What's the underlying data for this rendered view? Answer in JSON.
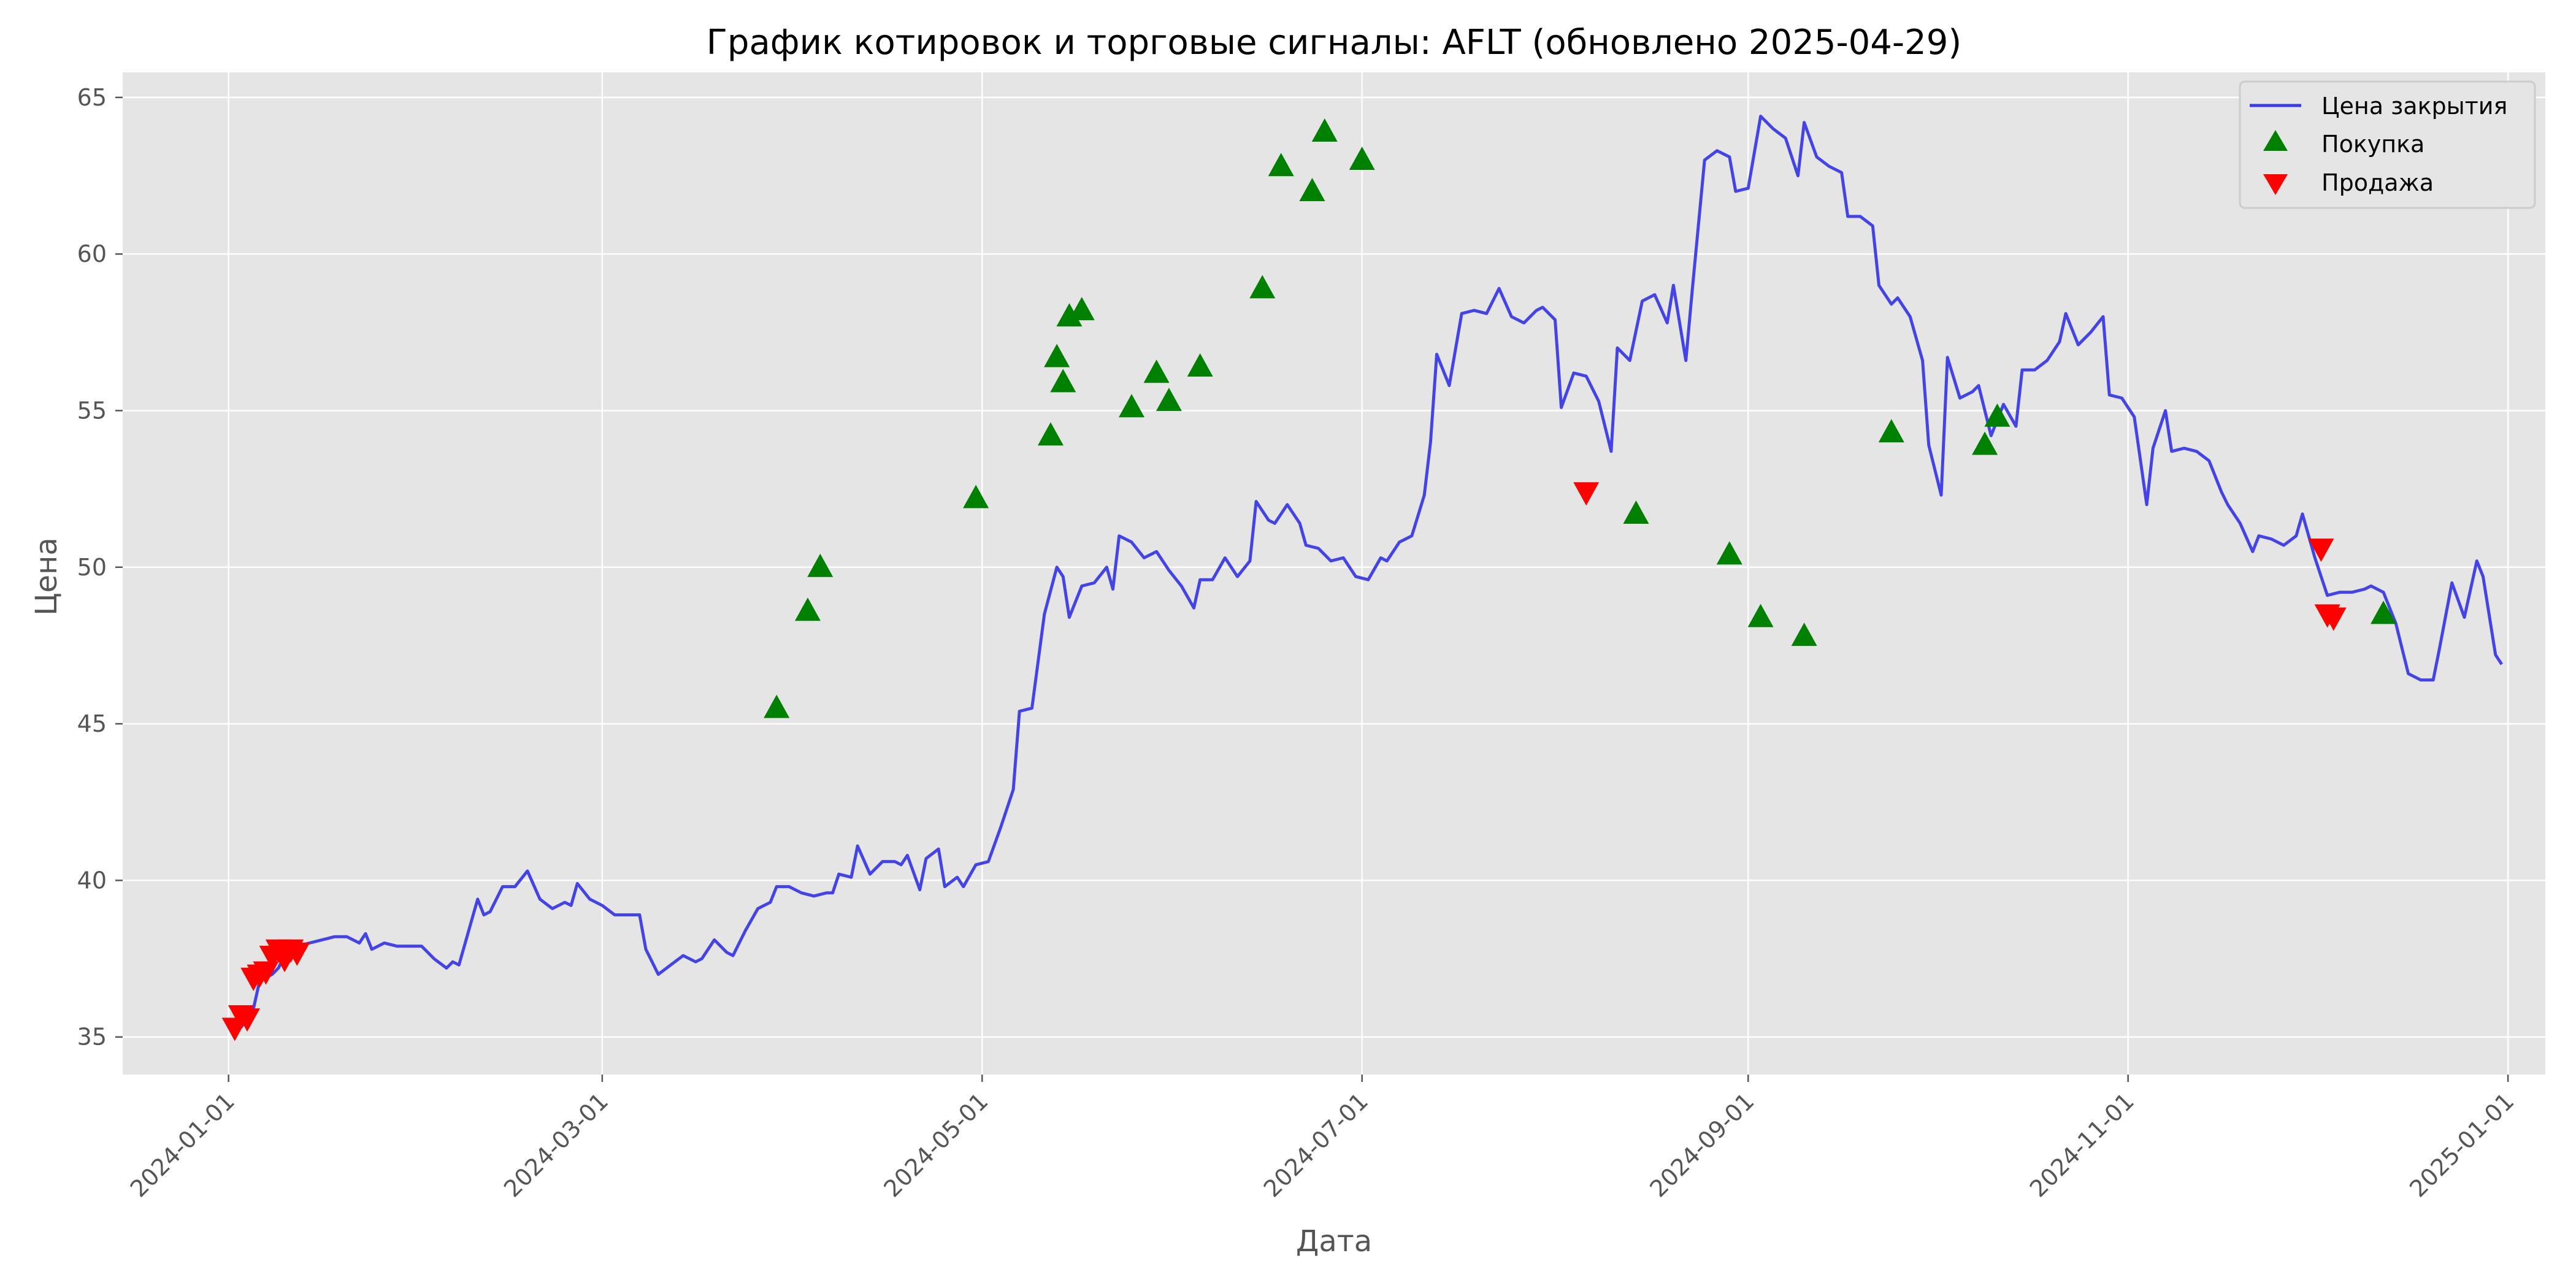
{
  "chart_data": {
    "type": "line",
    "title": "График котировок и торговые сигналы: AFLT (обновлено 2025-04-29)",
    "xlabel": "Дата",
    "ylabel": "Цена",
    "xlim": [
      "2023-12-15",
      "2025-01-07"
    ],
    "ylim": [
      33.8,
      65.8
    ],
    "x_ticks": [
      "2024-01-01",
      "2024-03-01",
      "2024-05-01",
      "2024-07-01",
      "2024-09-01",
      "2024-11-01",
      "2025-01-01"
    ],
    "y_ticks": [
      35,
      40,
      45,
      50,
      55,
      60,
      65
    ],
    "grid": true,
    "legend_position": "top-right",
    "colors": {
      "line": "#3b3be6",
      "buy": "#008000",
      "sell": "#ff0000",
      "plot_bg": "#e5e5e5",
      "grid": "#ffffff"
    },
    "series": [
      {
        "name": "Цена закрытия",
        "type": "line",
        "points": [
          [
            "2024-01-03",
            35.3
          ],
          [
            "2024-01-04",
            35.6
          ],
          [
            "2024-01-05",
            35.9
          ],
          [
            "2024-01-06",
            36.8
          ],
          [
            "2024-01-08",
            37.0
          ],
          [
            "2024-01-09",
            37.2
          ],
          [
            "2024-01-10",
            37.6
          ],
          [
            "2024-01-11",
            37.8
          ],
          [
            "2024-01-12",
            37.9
          ],
          [
            "2024-01-14",
            38.0
          ],
          [
            "2024-01-16",
            38.1
          ],
          [
            "2024-01-18",
            38.2
          ],
          [
            "2024-01-20",
            38.2
          ],
          [
            "2024-01-22",
            38.0
          ],
          [
            "2024-01-23",
            38.3
          ],
          [
            "2024-01-24",
            37.8
          ],
          [
            "2024-01-26",
            38.0
          ],
          [
            "2024-01-28",
            37.9
          ],
          [
            "2024-02-01",
            37.9
          ],
          [
            "2024-02-03",
            37.5
          ],
          [
            "2024-02-05",
            37.2
          ],
          [
            "2024-02-06",
            37.4
          ],
          [
            "2024-02-07",
            37.3
          ],
          [
            "2024-02-10",
            39.4
          ],
          [
            "2024-02-11",
            38.9
          ],
          [
            "2024-02-12",
            39.0
          ],
          [
            "2024-02-14",
            39.8
          ],
          [
            "2024-02-16",
            39.8
          ],
          [
            "2024-02-18",
            40.3
          ],
          [
            "2024-02-20",
            39.4
          ],
          [
            "2024-02-22",
            39.1
          ],
          [
            "2024-02-24",
            39.3
          ],
          [
            "2024-02-25",
            39.2
          ],
          [
            "2024-02-26",
            39.9
          ],
          [
            "2024-02-28",
            39.4
          ],
          [
            "2024-03-01",
            39.2
          ],
          [
            "2024-03-03",
            38.9
          ],
          [
            "2024-03-05",
            38.9
          ],
          [
            "2024-03-07",
            38.9
          ],
          [
            "2024-03-08",
            37.8
          ],
          [
            "2024-03-10",
            37.0
          ],
          [
            "2024-03-12",
            37.3
          ],
          [
            "2024-03-14",
            37.6
          ],
          [
            "2024-03-16",
            37.4
          ],
          [
            "2024-03-17",
            37.5
          ],
          [
            "2024-03-19",
            38.1
          ],
          [
            "2024-03-21",
            37.7
          ],
          [
            "2024-03-22",
            37.6
          ],
          [
            "2024-03-24",
            38.4
          ],
          [
            "2024-03-26",
            39.1
          ],
          [
            "2024-03-28",
            39.3
          ],
          [
            "2024-03-29",
            39.8
          ],
          [
            "2024-03-31",
            39.8
          ],
          [
            "2024-04-02",
            39.6
          ],
          [
            "2024-04-04",
            39.5
          ],
          [
            "2024-04-06",
            39.6
          ],
          [
            "2024-04-07",
            39.6
          ],
          [
            "2024-04-08",
            40.2
          ],
          [
            "2024-04-10",
            40.1
          ],
          [
            "2024-04-11",
            41.1
          ],
          [
            "2024-04-13",
            40.2
          ],
          [
            "2024-04-15",
            40.6
          ],
          [
            "2024-04-17",
            40.6
          ],
          [
            "2024-04-18",
            40.5
          ],
          [
            "2024-04-19",
            40.8
          ],
          [
            "2024-04-21",
            39.7
          ],
          [
            "2024-04-22",
            40.7
          ],
          [
            "2024-04-24",
            41.0
          ],
          [
            "2024-04-25",
            39.8
          ],
          [
            "2024-04-27",
            40.1
          ],
          [
            "2024-04-28",
            39.8
          ],
          [
            "2024-04-30",
            40.5
          ],
          [
            "2024-05-02",
            40.6
          ],
          [
            "2024-05-04",
            41.7
          ],
          [
            "2024-05-06",
            42.9
          ],
          [
            "2024-05-07",
            45.4
          ],
          [
            "2024-05-09",
            45.5
          ],
          [
            "2024-05-11",
            48.5
          ],
          [
            "2024-05-13",
            50.0
          ],
          [
            "2024-05-14",
            49.7
          ],
          [
            "2024-05-15",
            48.4
          ],
          [
            "2024-05-17",
            49.4
          ],
          [
            "2024-05-19",
            49.5
          ],
          [
            "2024-05-21",
            50.0
          ],
          [
            "2024-05-22",
            49.3
          ],
          [
            "2024-05-23",
            51.0
          ],
          [
            "2024-05-25",
            50.8
          ],
          [
            "2024-05-27",
            50.3
          ],
          [
            "2024-05-29",
            50.5
          ],
          [
            "2024-05-31",
            49.9
          ],
          [
            "2024-06-02",
            49.4
          ],
          [
            "2024-06-04",
            48.7
          ],
          [
            "2024-06-05",
            49.6
          ],
          [
            "2024-06-07",
            49.6
          ],
          [
            "2024-06-09",
            50.3
          ],
          [
            "2024-06-11",
            49.7
          ],
          [
            "2024-06-13",
            50.2
          ],
          [
            "2024-06-14",
            52.1
          ],
          [
            "2024-06-16",
            51.5
          ],
          [
            "2024-06-17",
            51.4
          ],
          [
            "2024-06-19",
            52.0
          ],
          [
            "2024-06-21",
            51.4
          ],
          [
            "2024-06-22",
            50.7
          ],
          [
            "2024-06-24",
            50.6
          ],
          [
            "2024-06-26",
            50.2
          ],
          [
            "2024-06-28",
            50.3
          ],
          [
            "2024-06-30",
            49.7
          ],
          [
            "2024-07-02",
            49.6
          ],
          [
            "2024-07-04",
            50.3
          ],
          [
            "2024-07-05",
            50.2
          ],
          [
            "2024-07-07",
            50.8
          ],
          [
            "2024-07-09",
            51.0
          ],
          [
            "2024-07-11",
            52.3
          ],
          [
            "2024-07-12",
            54.0
          ],
          [
            "2024-07-13",
            56.8
          ],
          [
            "2024-07-15",
            55.8
          ],
          [
            "2024-07-17",
            58.1
          ],
          [
            "2024-07-19",
            58.2
          ],
          [
            "2024-07-21",
            58.1
          ],
          [
            "2024-07-23",
            58.9
          ],
          [
            "2024-07-25",
            58.0
          ],
          [
            "2024-07-27",
            57.8
          ],
          [
            "2024-07-29",
            58.2
          ],
          [
            "2024-07-30",
            58.3
          ],
          [
            "2024-08-01",
            57.9
          ],
          [
            "2024-08-02",
            55.1
          ],
          [
            "2024-08-04",
            56.2
          ],
          [
            "2024-08-06",
            56.1
          ],
          [
            "2024-08-08",
            55.3
          ],
          [
            "2024-08-10",
            53.7
          ],
          [
            "2024-08-11",
            57.0
          ],
          [
            "2024-08-13",
            56.6
          ],
          [
            "2024-08-15",
            58.5
          ],
          [
            "2024-08-17",
            58.7
          ],
          [
            "2024-08-19",
            57.8
          ],
          [
            "2024-08-20",
            59.0
          ],
          [
            "2024-08-22",
            56.6
          ],
          [
            "2024-08-23",
            58.8
          ],
          [
            "2024-08-25",
            63.0
          ],
          [
            "2024-08-27",
            63.3
          ],
          [
            "2024-08-29",
            63.1
          ],
          [
            "2024-08-30",
            62.0
          ],
          [
            "2024-09-01",
            62.1
          ],
          [
            "2024-09-03",
            64.4
          ],
          [
            "2024-09-05",
            64.0
          ],
          [
            "2024-09-07",
            63.7
          ],
          [
            "2024-09-09",
            62.5
          ],
          [
            "2024-09-10",
            64.2
          ],
          [
            "2024-09-12",
            63.1
          ],
          [
            "2024-09-14",
            62.8
          ],
          [
            "2024-09-16",
            62.6
          ],
          [
            "2024-09-17",
            61.2
          ],
          [
            "2024-09-19",
            61.2
          ],
          [
            "2024-09-21",
            60.9
          ],
          [
            "2024-09-22",
            59.0
          ],
          [
            "2024-09-24",
            58.4
          ],
          [
            "2024-09-25",
            58.6
          ],
          [
            "2024-09-27",
            58.0
          ],
          [
            "2024-09-29",
            56.6
          ],
          [
            "2024-09-30",
            53.9
          ],
          [
            "2024-10-02",
            52.3
          ],
          [
            "2024-10-03",
            56.7
          ],
          [
            "2024-10-05",
            55.4
          ],
          [
            "2024-10-07",
            55.6
          ],
          [
            "2024-10-08",
            55.8
          ],
          [
            "2024-10-10",
            54.2
          ],
          [
            "2024-10-12",
            55.2
          ],
          [
            "2024-10-14",
            54.5
          ],
          [
            "2024-10-15",
            56.3
          ],
          [
            "2024-10-17",
            56.3
          ],
          [
            "2024-10-19",
            56.6
          ],
          [
            "2024-10-21",
            57.2
          ],
          [
            "2024-10-22",
            58.1
          ],
          [
            "2024-10-24",
            57.1
          ],
          [
            "2024-10-26",
            57.5
          ],
          [
            "2024-10-28",
            58.0
          ],
          [
            "2024-10-29",
            55.5
          ],
          [
            "2024-10-31",
            55.4
          ],
          [
            "2024-11-02",
            54.8
          ],
          [
            "2024-11-04",
            52.0
          ],
          [
            "2024-11-05",
            53.8
          ],
          [
            "2024-11-07",
            55.0
          ],
          [
            "2024-11-08",
            53.7
          ],
          [
            "2024-11-10",
            53.8
          ],
          [
            "2024-11-12",
            53.7
          ],
          [
            "2024-11-14",
            53.4
          ],
          [
            "2024-11-16",
            52.4
          ],
          [
            "2024-11-17",
            52.0
          ],
          [
            "2024-11-19",
            51.4
          ],
          [
            "2024-11-21",
            50.5
          ],
          [
            "2024-11-22",
            51.0
          ],
          [
            "2024-11-24",
            50.9
          ],
          [
            "2024-11-26",
            50.7
          ],
          [
            "2024-11-28",
            51.0
          ],
          [
            "2024-11-29",
            51.7
          ],
          [
            "2024-12-01",
            50.3
          ],
          [
            "2024-12-03",
            49.1
          ],
          [
            "2024-12-05",
            49.2
          ],
          [
            "2024-12-07",
            49.2
          ],
          [
            "2024-12-09",
            49.3
          ],
          [
            "2024-12-10",
            49.4
          ],
          [
            "2024-12-12",
            49.2
          ],
          [
            "2024-12-14",
            48.2
          ],
          [
            "2024-12-16",
            46.6
          ],
          [
            "2024-12-18",
            46.4
          ],
          [
            "2024-12-20",
            46.4
          ],
          [
            "2024-12-21",
            47.4
          ],
          [
            "2024-12-23",
            49.5
          ],
          [
            "2024-12-25",
            48.4
          ],
          [
            "2024-12-27",
            50.2
          ],
          [
            "2024-12-28",
            49.7
          ],
          [
            "2024-12-30",
            47.2
          ],
          [
            "2024-12-31",
            46.9
          ]
        ]
      }
    ],
    "buy_signals": {
      "name": "Покупка",
      "points": [
        [
          "2024-03-29",
          45.5
        ],
        [
          "2024-04-03",
          48.6
        ],
        [
          "2024-04-05",
          50.0
        ],
        [
          "2024-04-30",
          52.2
        ],
        [
          "2024-05-12",
          54.2
        ],
        [
          "2024-05-13",
          56.7
        ],
        [
          "2024-05-14",
          55.9
        ],
        [
          "2024-05-15",
          58.0
        ],
        [
          "2024-05-17",
          58.2
        ],
        [
          "2024-05-25",
          55.1
        ],
        [
          "2024-05-29",
          56.2
        ],
        [
          "2024-05-31",
          55.3
        ],
        [
          "2024-06-05",
          56.4
        ],
        [
          "2024-06-15",
          58.9
        ],
        [
          "2024-06-18",
          62.8
        ],
        [
          "2024-06-23",
          62.0
        ],
        [
          "2024-06-25",
          63.9
        ],
        [
          "2024-07-01",
          63.0
        ],
        [
          "2024-08-14",
          51.7
        ],
        [
          "2024-08-29",
          50.4
        ],
        [
          "2024-09-03",
          48.4
        ],
        [
          "2024-09-10",
          47.8
        ],
        [
          "2024-09-24",
          54.3
        ],
        [
          "2024-10-09",
          53.9
        ],
        [
          "2024-10-11",
          54.8
        ],
        [
          "2024-12-12",
          48.5
        ]
      ]
    },
    "sell_signals": {
      "name": "Продажа",
      "points": [
        [
          "2024-01-02",
          35.3
        ],
        [
          "2024-01-03",
          35.7
        ],
        [
          "2024-01-04",
          35.6
        ],
        [
          "2024-01-05",
          36.9
        ],
        [
          "2024-01-06",
          37.0
        ],
        [
          "2024-01-07",
          37.1
        ],
        [
          "2024-01-08",
          37.6
        ],
        [
          "2024-01-09",
          37.8
        ],
        [
          "2024-01-10",
          37.5
        ],
        [
          "2024-01-11",
          37.8
        ],
        [
          "2024-01-12",
          37.7
        ],
        [
          "2024-08-06",
          52.4
        ],
        [
          "2024-12-02",
          50.6
        ],
        [
          "2024-12-03",
          48.5
        ],
        [
          "2024-12-04",
          48.4
        ]
      ]
    }
  }
}
